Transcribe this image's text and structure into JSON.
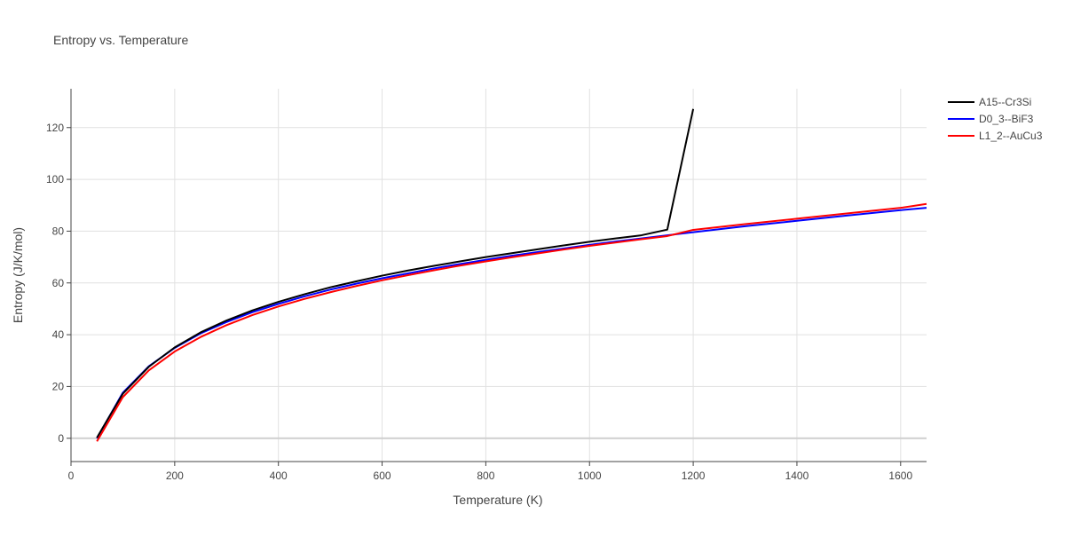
{
  "chart_data": {
    "type": "line",
    "title": "Entropy vs. Temperature",
    "xlabel": "Temperature (K)",
    "ylabel": "Entropy (J/K/mol)",
    "xlim": [
      0,
      1650
    ],
    "ylim": [
      -9,
      135
    ],
    "x_ticks": [
      0,
      200,
      400,
      600,
      800,
      1000,
      1200,
      1400,
      1600
    ],
    "y_ticks": [
      0,
      20,
      40,
      60,
      80,
      100,
      120
    ],
    "grid": true,
    "legend_position": "top-right",
    "series": [
      {
        "name": "A15--Cr3Si",
        "color": "#000000",
        "x": [
          50,
          100,
          150,
          200,
          250,
          300,
          350,
          400,
          450,
          500,
          550,
          600,
          650,
          700,
          750,
          800,
          850,
          900,
          950,
          1000,
          1050,
          1100,
          1150,
          1200
        ],
        "y": [
          0.2,
          17.2,
          27.6,
          35.1,
          40.9,
          45.5,
          49.4,
          52.7,
          55.6,
          58.3,
          60.6,
          62.8,
          64.8,
          66.6,
          68.3,
          70.0,
          71.5,
          73.0,
          74.5,
          75.9,
          77.2,
          78.4,
          80.6,
          127.2
        ]
      },
      {
        "name": "D0_3--BiF3",
        "color": "#0000ff",
        "x": [
          50,
          100,
          150,
          200,
          250,
          300,
          350,
          400,
          450,
          500,
          550,
          600,
          650,
          700,
          750,
          800,
          850,
          900,
          950,
          1000,
          1050,
          1100,
          1150,
          1200,
          1300,
          1400,
          1500,
          1600,
          1650
        ],
        "y": [
          0.0,
          17.6,
          27.8,
          34.9,
          40.5,
          44.9,
          48.7,
          51.9,
          54.8,
          57.4,
          59.7,
          61.8,
          63.7,
          65.6,
          67.3,
          68.9,
          70.5,
          71.9,
          73.3,
          74.7,
          76.0,
          77.2,
          78.4,
          79.6,
          81.9,
          84.0,
          86.1,
          88.1,
          89.0
        ]
      },
      {
        "name": "L1_2--AuCu3",
        "color": "#ff0000",
        "x": [
          50,
          100,
          150,
          200,
          250,
          300,
          350,
          400,
          450,
          500,
          550,
          600,
          650,
          700,
          750,
          800,
          850,
          900,
          950,
          1000,
          1050,
          1100,
          1150,
          1200,
          1300,
          1400,
          1500,
          1600,
          1650
        ],
        "y": [
          -1.2,
          15.9,
          26.2,
          33.5,
          39.1,
          43.7,
          47.6,
          50.9,
          53.8,
          56.4,
          58.8,
          61.0,
          63.0,
          64.9,
          66.7,
          68.3,
          69.9,
          71.4,
          72.9,
          74.3,
          75.6,
          76.9,
          78.1,
          80.5,
          82.7,
          84.8,
          86.9,
          89.0,
          90.5
        ]
      }
    ]
  }
}
